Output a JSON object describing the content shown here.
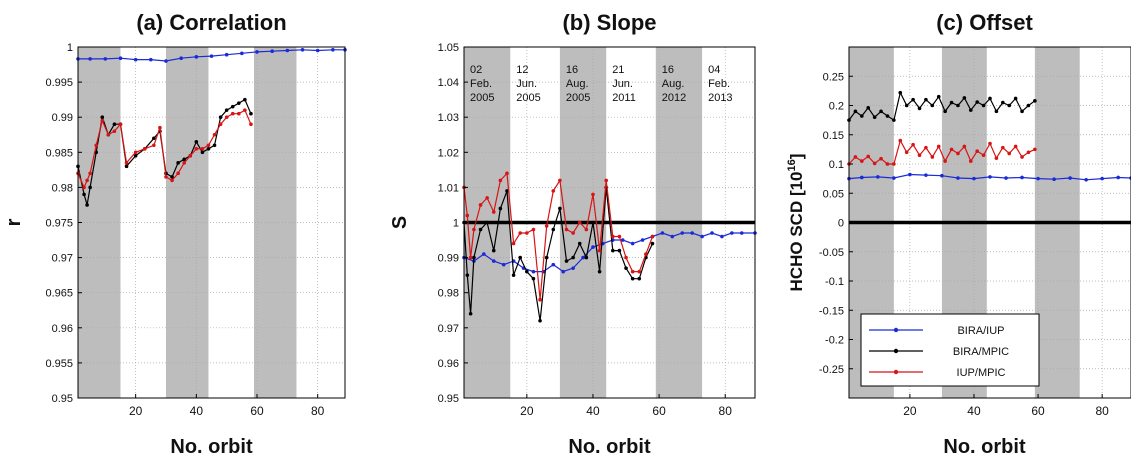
{
  "chart_data": [
    {
      "type": "line",
      "title": "(a) Correlation",
      "xlabel": "No. orbit",
      "ylabel": "r",
      "xlim": [
        1,
        89
      ],
      "ylim": [
        0.95,
        1.0
      ],
      "xticks": [
        20,
        40,
        60,
        80
      ],
      "yticks": [
        0.95,
        0.955,
        0.96,
        0.965,
        0.97,
        0.975,
        0.98,
        0.985,
        0.99,
        0.995,
        1
      ],
      "ytick_labels": [
        "0.95",
        "0.955",
        "0.96",
        "0.965",
        "0.97",
        "0.975",
        "0.98",
        "0.985",
        "0.99",
        "0.995",
        "1"
      ],
      "shaded_x": [
        [
          1,
          15
        ],
        [
          30,
          44
        ],
        [
          59,
          73
        ]
      ],
      "grid": true,
      "series": [
        {
          "name": "BIRA/IUP",
          "color": "#1a2ad8",
          "x": [
            1,
            5,
            10,
            15,
            20,
            25,
            30,
            35,
            40,
            45,
            50,
            55,
            60,
            65,
            70,
            75,
            80,
            85,
            89
          ],
          "y": [
            0.9983,
            0.9983,
            0.9983,
            0.9984,
            0.9982,
            0.9982,
            0.998,
            0.9984,
            0.9986,
            0.9987,
            0.9989,
            0.9991,
            0.9993,
            0.9994,
            0.9995,
            0.9996,
            0.9995,
            0.9996,
            0.9996
          ]
        },
        {
          "name": "BIRA/MPIC",
          "color": "#000000",
          "x": [
            1,
            3,
            4,
            5,
            7,
            9,
            11,
            13,
            15,
            17,
            20,
            23,
            26,
            28,
            30,
            32,
            34,
            36,
            38,
            40,
            42,
            44,
            46,
            48,
            50,
            52,
            54,
            56,
            58
          ],
          "y": [
            0.983,
            0.979,
            0.9775,
            0.98,
            0.985,
            0.99,
            0.9875,
            0.989,
            0.989,
            0.983,
            0.9845,
            0.9855,
            0.987,
            0.988,
            0.982,
            0.9815,
            0.9835,
            0.984,
            0.9845,
            0.9865,
            0.985,
            0.9855,
            0.986,
            0.99,
            0.991,
            0.9915,
            0.992,
            0.9925,
            0.9905
          ]
        },
        {
          "name": "IUP/MPIC",
          "color": "#d81414",
          "x": [
            1,
            3,
            4,
            5,
            7,
            9,
            11,
            13,
            15,
            17,
            20,
            23,
            26,
            28,
            30,
            32,
            34,
            36,
            38,
            40,
            42,
            44,
            46,
            48,
            50,
            52,
            54,
            56,
            58
          ],
          "y": [
            0.982,
            0.98,
            0.981,
            0.982,
            0.986,
            0.9895,
            0.9875,
            0.988,
            0.989,
            0.9835,
            0.985,
            0.9855,
            0.986,
            0.9885,
            0.9815,
            0.981,
            0.982,
            0.9835,
            0.9845,
            0.9855,
            0.9855,
            0.986,
            0.9875,
            0.989,
            0.99,
            0.9905,
            0.9905,
            0.991,
            0.989
          ]
        }
      ]
    },
    {
      "type": "line",
      "title": "(b) Slope",
      "xlabel": "No. orbit",
      "ylabel": "S",
      "xlim": [
        1,
        89
      ],
      "ylim": [
        0.95,
        1.05
      ],
      "xticks": [
        20,
        40,
        60,
        80
      ],
      "yticks": [
        0.95,
        0.96,
        0.97,
        0.98,
        0.99,
        1,
        1.01,
        1.02,
        1.03,
        1.04,
        1.05
      ],
      "ytick_labels": [
        "0.95",
        "0.96",
        "0.97",
        "0.98",
        "0.99",
        "1",
        "1.01",
        "1.02",
        "1.03",
        "1.04",
        "1.05"
      ],
      "shaded_x": [
        [
          1,
          15
        ],
        [
          30,
          44
        ],
        [
          59,
          73
        ]
      ],
      "reference_line_y": 1,
      "grid": true,
      "annotations": [
        {
          "x": 1,
          "lines": [
            "02",
            "Feb.",
            "2005"
          ]
        },
        {
          "x": 15,
          "lines": [
            "12",
            "Jun.",
            "2005"
          ]
        },
        {
          "x": 30,
          "lines": [
            "16",
            "Aug.",
            "2005"
          ]
        },
        {
          "x": 44,
          "lines": [
            "21",
            "Jun.",
            "2011"
          ]
        },
        {
          "x": 59,
          "lines": [
            "16",
            "Aug.",
            "2012"
          ]
        },
        {
          "x": 73,
          "lines": [
            "04",
            "Feb.",
            "2013"
          ]
        }
      ],
      "series": [
        {
          "name": "BIRA/IUP",
          "color": "#1a2ad8",
          "x": [
            1,
            4,
            7,
            10,
            13,
            16,
            19,
            22,
            25,
            28,
            31,
            34,
            37,
            40,
            43,
            46,
            49,
            52,
            55,
            58,
            61,
            64,
            67,
            70,
            73,
            76,
            79,
            82,
            85,
            89
          ],
          "y": [
            0.99,
            0.989,
            0.991,
            0.989,
            0.988,
            0.989,
            0.987,
            0.986,
            0.986,
            0.988,
            0.986,
            0.987,
            0.99,
            0.993,
            0.994,
            0.995,
            0.995,
            0.994,
            0.995,
            0.996,
            0.997,
            0.996,
            0.997,
            0.997,
            0.996,
            0.997,
            0.996,
            0.997,
            0.997,
            0.997
          ]
        },
        {
          "name": "BIRA/MPIC",
          "color": "#000000",
          "x": [
            1,
            2,
            3,
            4,
            6,
            8,
            10,
            12,
            14,
            16,
            18,
            20,
            22,
            24,
            26,
            28,
            30,
            32,
            34,
            36,
            38,
            40,
            42,
            44,
            46,
            48,
            50,
            52,
            54,
            56,
            58
          ],
          "y": [
            1.0,
            0.985,
            0.974,
            0.99,
            0.998,
            1.0,
            0.992,
            1.004,
            1.009,
            0.985,
            0.99,
            0.986,
            0.984,
            0.972,
            0.99,
            0.998,
            1.004,
            0.989,
            0.99,
            0.994,
            0.99,
            1.0,
            0.986,
            1.01,
            0.992,
            0.992,
            0.987,
            0.984,
            0.984,
            0.99,
            0.994
          ]
        },
        {
          "name": "IUP/MPIC",
          "color": "#d81414",
          "x": [
            1,
            2,
            3,
            4,
            6,
            8,
            10,
            12,
            14,
            16,
            18,
            20,
            22,
            24,
            26,
            28,
            30,
            32,
            34,
            36,
            38,
            40,
            42,
            44,
            46,
            48,
            50,
            52,
            54,
            56,
            58
          ],
          "y": [
            1.01,
            1.002,
            0.99,
            0.998,
            1.005,
            1.007,
            1.003,
            1.012,
            1.014,
            0.994,
            0.997,
            0.997,
            0.998,
            0.978,
            0.999,
            1.009,
            1.012,
            0.998,
            0.997,
            1.0,
            0.998,
            1.008,
            0.992,
            1.012,
            0.996,
            0.996,
            0.99,
            0.986,
            0.986,
            0.991,
            0.996
          ]
        }
      ]
    },
    {
      "type": "line",
      "title": "(c) Offset",
      "xlabel": "No. orbit",
      "ylabel": "HCHO SCD [10",
      "ylabel_exp": "16",
      "ylabel_end": "]",
      "xlim": [
        1,
        89
      ],
      "ylim": [
        -0.3,
        0.3
      ],
      "xticks": [
        20,
        40,
        60,
        80
      ],
      "yticks": [
        -0.25,
        -0.2,
        -0.15,
        -0.1,
        -0.05,
        0,
        0.05,
        0.1,
        0.15,
        0.2,
        0.25
      ],
      "ytick_labels": [
        "-0.25",
        "-0.2",
        "-0.15",
        "-0.1",
        "-0.05",
        "0",
        "0.05",
        "0.1",
        "0.15",
        "0.2",
        "0.25"
      ],
      "shaded_x": [
        [
          1,
          15
        ],
        [
          30,
          44
        ],
        [
          59,
          73
        ]
      ],
      "reference_line_y": 0,
      "grid": true,
      "legend_position": "bottom-left",
      "series": [
        {
          "name": "BIRA/IUP",
          "color": "#1a2ad8",
          "x": [
            1,
            5,
            10,
            15,
            20,
            25,
            30,
            35,
            40,
            45,
            50,
            55,
            60,
            65,
            70,
            75,
            80,
            85,
            89
          ],
          "y": [
            0.075,
            0.077,
            0.078,
            0.076,
            0.082,
            0.081,
            0.08,
            0.076,
            0.075,
            0.078,
            0.076,
            0.077,
            0.075,
            0.074,
            0.076,
            0.073,
            0.075,
            0.077,
            0.076
          ]
        },
        {
          "name": "BIRA/MPIC",
          "color": "#000000",
          "x": [
            1,
            3,
            5,
            7,
            9,
            11,
            13,
            15,
            17,
            19,
            21,
            23,
            25,
            27,
            29,
            31,
            33,
            35,
            37,
            39,
            41,
            43,
            45,
            47,
            49,
            51,
            53,
            55,
            57,
            59
          ],
          "y": [
            0.175,
            0.19,
            0.182,
            0.196,
            0.18,
            0.19,
            0.182,
            0.175,
            0.222,
            0.2,
            0.21,
            0.195,
            0.21,
            0.2,
            0.215,
            0.19,
            0.205,
            0.2,
            0.213,
            0.192,
            0.206,
            0.2,
            0.212,
            0.19,
            0.205,
            0.2,
            0.212,
            0.19,
            0.2,
            0.208
          ]
        },
        {
          "name": "IUP/MPIC",
          "color": "#d81414",
          "x": [
            1,
            3,
            5,
            7,
            9,
            11,
            13,
            15,
            17,
            19,
            21,
            23,
            25,
            27,
            29,
            31,
            33,
            35,
            37,
            39,
            41,
            43,
            45,
            47,
            49,
            51,
            53,
            55,
            57,
            59
          ],
          "y": [
            0.1,
            0.112,
            0.105,
            0.113,
            0.101,
            0.109,
            0.1,
            0.1,
            0.14,
            0.12,
            0.133,
            0.115,
            0.128,
            0.112,
            0.13,
            0.105,
            0.125,
            0.118,
            0.13,
            0.105,
            0.122,
            0.115,
            0.135,
            0.11,
            0.128,
            0.118,
            0.13,
            0.112,
            0.12,
            0.125
          ]
        }
      ]
    }
  ]
}
